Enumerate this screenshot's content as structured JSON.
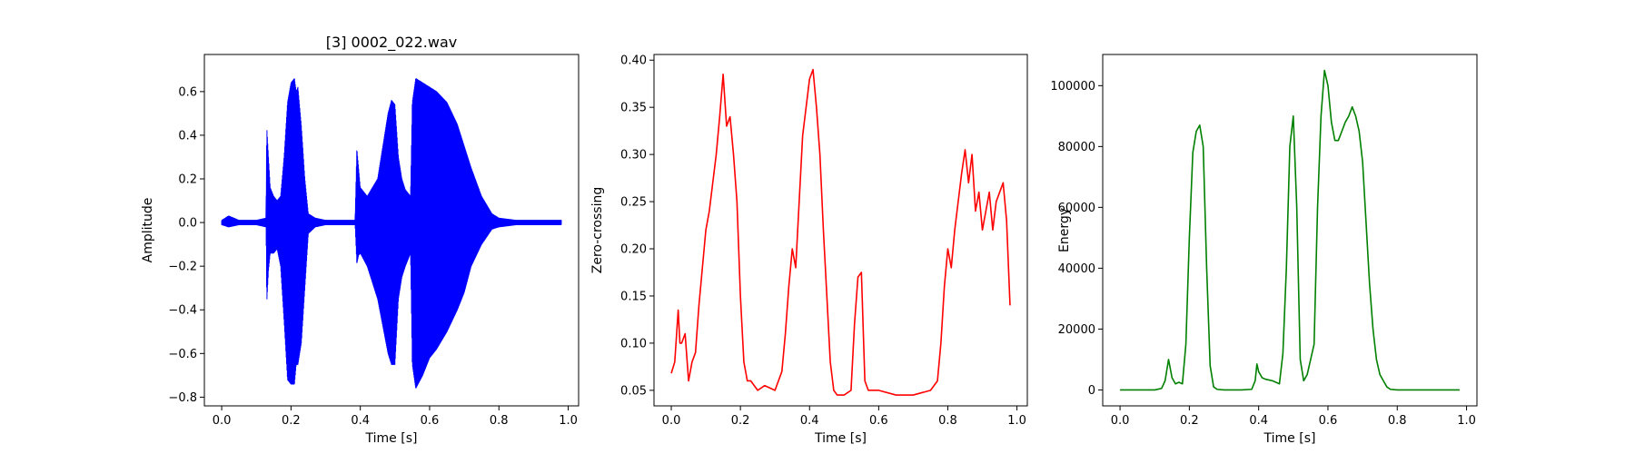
{
  "chart_data": [
    {
      "type": "line",
      "title": "[3] 0002_022.wav",
      "xlabel": "Time [s]",
      "ylabel": "Amplitude",
      "xlim": [
        -0.05,
        1.03
      ],
      "ylim": [
        -0.84,
        0.77
      ],
      "xticks": [
        0.0,
        0.2,
        0.4,
        0.6,
        0.8,
        1.0
      ],
      "xtick_labels": [
        "0.0",
        "0.2",
        "0.4",
        "0.6",
        "0.8",
        "1.0"
      ],
      "yticks": [
        -0.8,
        -0.6,
        -0.4,
        -0.2,
        0.0,
        0.2,
        0.4,
        0.6
      ],
      "ytick_labels": [
        "−0.8",
        "−0.6",
        "−0.4",
        "−0.2",
        "0.0",
        "0.2",
        "0.4",
        "0.6"
      ],
      "color": "#0000ff",
      "series_kind": "envelope",
      "series": [
        {
          "x": [
            0.0,
            0.02,
            0.05,
            0.1,
            0.128,
            0.13,
            0.135,
            0.14,
            0.15,
            0.16,
            0.17,
            0.18,
            0.19,
            0.2,
            0.21,
            0.215,
            0.22,
            0.23,
            0.24,
            0.25,
            0.27,
            0.3,
            0.35,
            0.385,
            0.39,
            0.395,
            0.4,
            0.42,
            0.45,
            0.48,
            0.49,
            0.5,
            0.51,
            0.52,
            0.53,
            0.545,
            0.55,
            0.56,
            0.58,
            0.6,
            0.62,
            0.65,
            0.68,
            0.7,
            0.72,
            0.75,
            0.78,
            0.8,
            0.85,
            0.9,
            0.95,
            0.98
          ],
          "upper": [
            0.01,
            0.03,
            0.01,
            0.01,
            0.02,
            0.44,
            0.3,
            0.16,
            0.12,
            0.1,
            0.12,
            0.3,
            0.55,
            0.64,
            0.66,
            0.6,
            0.62,
            0.44,
            0.2,
            0.04,
            0.02,
            0.01,
            0.01,
            0.01,
            0.34,
            0.25,
            0.16,
            0.12,
            0.2,
            0.5,
            0.56,
            0.54,
            0.3,
            0.2,
            0.15,
            0.12,
            0.55,
            0.66,
            0.64,
            0.62,
            0.6,
            0.55,
            0.45,
            0.35,
            0.25,
            0.12,
            0.04,
            0.02,
            0.01,
            0.01,
            0.01,
            0.01
          ],
          "lower": [
            -0.01,
            -0.02,
            -0.01,
            -0.01,
            -0.02,
            -0.37,
            -0.22,
            -0.14,
            -0.14,
            -0.12,
            -0.2,
            -0.45,
            -0.72,
            -0.74,
            -0.74,
            -0.65,
            -0.65,
            -0.55,
            -0.3,
            -0.05,
            -0.02,
            -0.01,
            -0.01,
            -0.01,
            -0.19,
            -0.15,
            -0.14,
            -0.2,
            -0.35,
            -0.6,
            -0.65,
            -0.65,
            -0.35,
            -0.25,
            -0.2,
            -0.14,
            -0.65,
            -0.76,
            -0.7,
            -0.62,
            -0.58,
            -0.5,
            -0.4,
            -0.32,
            -0.2,
            -0.1,
            -0.03,
            -0.02,
            -0.01,
            -0.01,
            -0.01,
            -0.01
          ]
        }
      ]
    },
    {
      "type": "line",
      "title": "",
      "xlabel": "Time [s]",
      "ylabel": "Zero-crossing",
      "xlim": [
        -0.05,
        1.03
      ],
      "ylim": [
        0.0335,
        0.406
      ],
      "xticks": [
        0.0,
        0.2,
        0.4,
        0.6,
        0.8,
        1.0
      ],
      "xtick_labels": [
        "0.0",
        "0.2",
        "0.4",
        "0.6",
        "0.8",
        "1.0"
      ],
      "yticks": [
        0.05,
        0.1,
        0.15,
        0.2,
        0.25,
        0.3,
        0.35,
        0.4
      ],
      "ytick_labels": [
        "0.05",
        "0.10",
        "0.15",
        "0.20",
        "0.25",
        "0.30",
        "0.35",
        "0.40"
      ],
      "color": "#ff0000",
      "series_kind": "line",
      "series": [
        {
          "x": [
            0.0,
            0.01,
            0.02,
            0.025,
            0.03,
            0.04,
            0.05,
            0.06,
            0.07,
            0.08,
            0.09,
            0.1,
            0.11,
            0.12,
            0.13,
            0.14,
            0.15,
            0.16,
            0.17,
            0.18,
            0.19,
            0.2,
            0.21,
            0.22,
            0.23,
            0.25,
            0.27,
            0.3,
            0.32,
            0.33,
            0.34,
            0.35,
            0.36,
            0.37,
            0.38,
            0.39,
            0.4,
            0.41,
            0.42,
            0.43,
            0.44,
            0.45,
            0.46,
            0.47,
            0.48,
            0.5,
            0.52,
            0.53,
            0.54,
            0.55,
            0.56,
            0.57,
            0.6,
            0.65,
            0.7,
            0.75,
            0.77,
            0.78,
            0.79,
            0.8,
            0.81,
            0.82,
            0.83,
            0.84,
            0.85,
            0.86,
            0.87,
            0.88,
            0.89,
            0.9,
            0.91,
            0.92,
            0.93,
            0.94,
            0.95,
            0.96,
            0.97,
            0.98
          ],
          "y": [
            0.068,
            0.08,
            0.135,
            0.1,
            0.1,
            0.11,
            0.06,
            0.08,
            0.09,
            0.14,
            0.18,
            0.22,
            0.24,
            0.27,
            0.3,
            0.34,
            0.385,
            0.33,
            0.34,
            0.3,
            0.25,
            0.15,
            0.08,
            0.06,
            0.06,
            0.05,
            0.055,
            0.05,
            0.07,
            0.11,
            0.16,
            0.2,
            0.18,
            0.25,
            0.32,
            0.35,
            0.38,
            0.39,
            0.35,
            0.3,
            0.22,
            0.15,
            0.08,
            0.05,
            0.045,
            0.045,
            0.05,
            0.12,
            0.17,
            0.175,
            0.06,
            0.05,
            0.05,
            0.045,
            0.045,
            0.05,
            0.06,
            0.1,
            0.16,
            0.2,
            0.18,
            0.22,
            0.25,
            0.28,
            0.305,
            0.27,
            0.3,
            0.24,
            0.26,
            0.22,
            0.24,
            0.26,
            0.22,
            0.25,
            0.26,
            0.27,
            0.23,
            0.14
          ]
        }
      ]
    },
    {
      "type": "line",
      "title": "",
      "xlabel": "Time [s]",
      "ylabel": "Energy",
      "xlim": [
        -0.05,
        1.03
      ],
      "ylim": [
        -5250,
        110250
      ],
      "xticks": [
        0.0,
        0.2,
        0.4,
        0.6,
        0.8,
        1.0
      ],
      "xtick_labels": [
        "0.0",
        "0.2",
        "0.4",
        "0.6",
        "0.8",
        "1.0"
      ],
      "yticks": [
        0,
        20000,
        40000,
        60000,
        80000,
        100000
      ],
      "ytick_labels": [
        "0",
        "20000",
        "40000",
        "60000",
        "80000",
        "100000"
      ],
      "color": "#008000",
      "series_kind": "line",
      "series": [
        {
          "x": [
            0.0,
            0.1,
            0.12,
            0.13,
            0.14,
            0.15,
            0.16,
            0.17,
            0.18,
            0.19,
            0.2,
            0.21,
            0.22,
            0.23,
            0.24,
            0.25,
            0.26,
            0.27,
            0.28,
            0.3,
            0.35,
            0.38,
            0.39,
            0.395,
            0.4,
            0.41,
            0.42,
            0.44,
            0.46,
            0.47,
            0.48,
            0.49,
            0.5,
            0.51,
            0.52,
            0.53,
            0.54,
            0.55,
            0.56,
            0.57,
            0.58,
            0.59,
            0.6,
            0.61,
            0.62,
            0.63,
            0.64,
            0.65,
            0.66,
            0.67,
            0.68,
            0.69,
            0.7,
            0.71,
            0.72,
            0.73,
            0.74,
            0.75,
            0.76,
            0.77,
            0.78,
            0.8,
            0.9,
            0.98
          ],
          "y": [
            0,
            0,
            500,
            3000,
            10000,
            4000,
            2000,
            2500,
            2000,
            15000,
            50000,
            78000,
            85000,
            87000,
            80000,
            40000,
            8000,
            1000,
            200,
            0,
            0,
            200,
            3000,
            8500,
            6000,
            4000,
            3500,
            3000,
            2000,
            12000,
            40000,
            80000,
            90000,
            60000,
            10000,
            3000,
            5000,
            10000,
            15000,
            60000,
            90000,
            105000,
            100000,
            88000,
            82000,
            82000,
            85000,
            88000,
            90000,
            93000,
            90000,
            85000,
            75000,
            55000,
            35000,
            20000,
            10000,
            5000,
            3000,
            1000,
            200,
            0,
            0,
            0
          ]
        }
      ]
    }
  ]
}
